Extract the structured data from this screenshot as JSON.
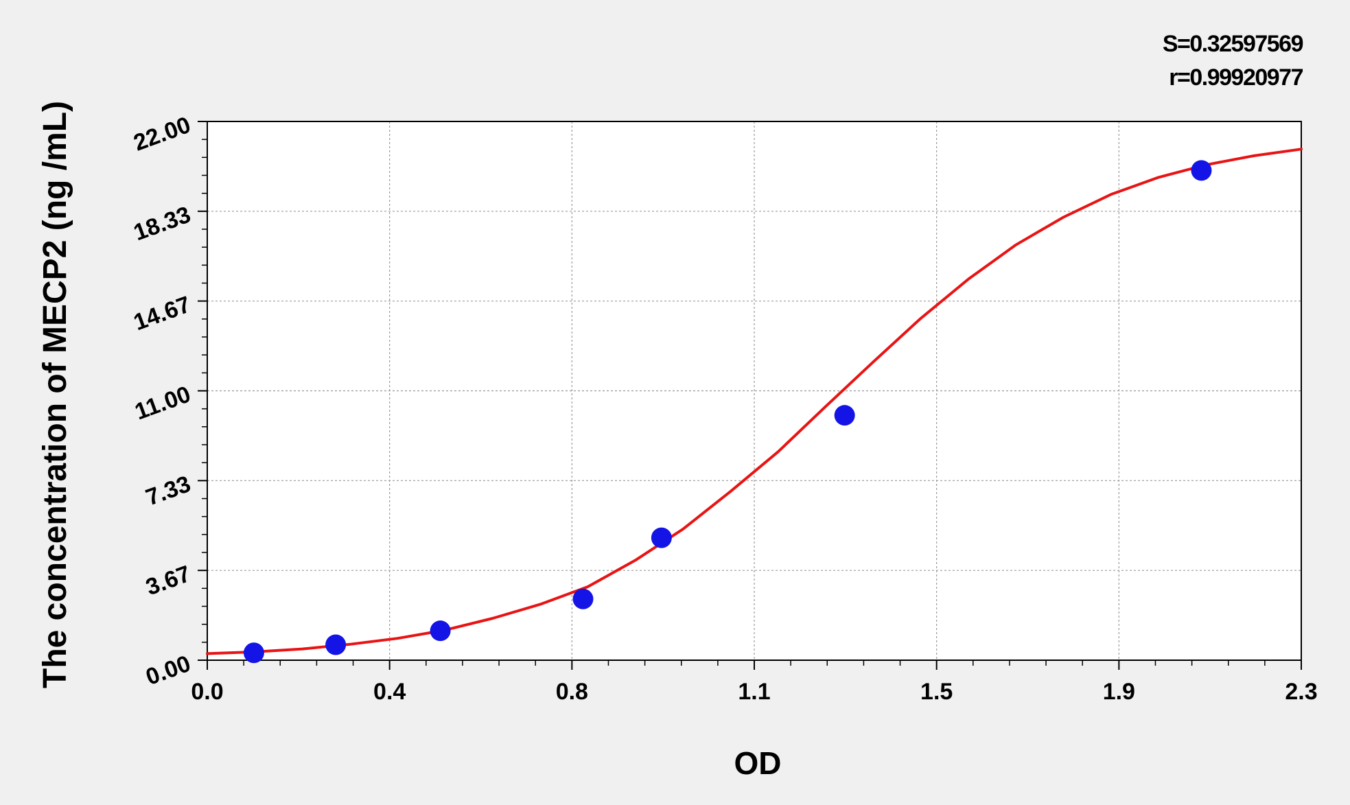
{
  "chart_data": {
    "type": "scatter",
    "title": "",
    "xlabel": "OD",
    "ylabel": "The concentration of MECP2 (ng /mL)",
    "xlim": [
      0,
      2.3
    ],
    "ylim": [
      0,
      22
    ],
    "x_ticks": [
      "0.0",
      "0.4",
      "0.8",
      "1.1",
      "1.5",
      "1.9",
      "2.3"
    ],
    "y_ticks": [
      "0.00",
      "3.67",
      "7.33",
      "11.00",
      "14.67",
      "18.33",
      "22.00"
    ],
    "grid": true,
    "stats": {
      "s_label": "S=0.32597569",
      "r_label": "r=0.99920977"
    },
    "series": [
      {
        "kind": "points",
        "color": "#1414e6",
        "x": [
          0.098,
          0.27,
          0.49,
          0.79,
          0.955,
          1.34,
          2.09
        ],
        "y": [
          0.3,
          0.63,
          1.2,
          2.5,
          5.0,
          10.0,
          20.0
        ]
      },
      {
        "kind": "fit-curve",
        "color": "#e81414",
        "x": [
          0.0,
          0.1,
          0.2,
          0.3,
          0.4,
          0.5,
          0.6,
          0.7,
          0.8,
          0.9,
          1.0,
          1.1,
          1.2,
          1.3,
          1.4,
          1.5,
          1.6,
          1.7,
          1.8,
          1.9,
          2.0,
          2.1,
          2.2,
          2.3
        ],
        "y": [
          0.27,
          0.34,
          0.46,
          0.65,
          0.89,
          1.23,
          1.71,
          2.28,
          3.0,
          4.08,
          5.35,
          6.89,
          8.51,
          10.36,
          12.18,
          13.96,
          15.56,
          16.96,
          18.09,
          19.02,
          19.72,
          20.23,
          20.6,
          20.87
        ]
      }
    ]
  }
}
